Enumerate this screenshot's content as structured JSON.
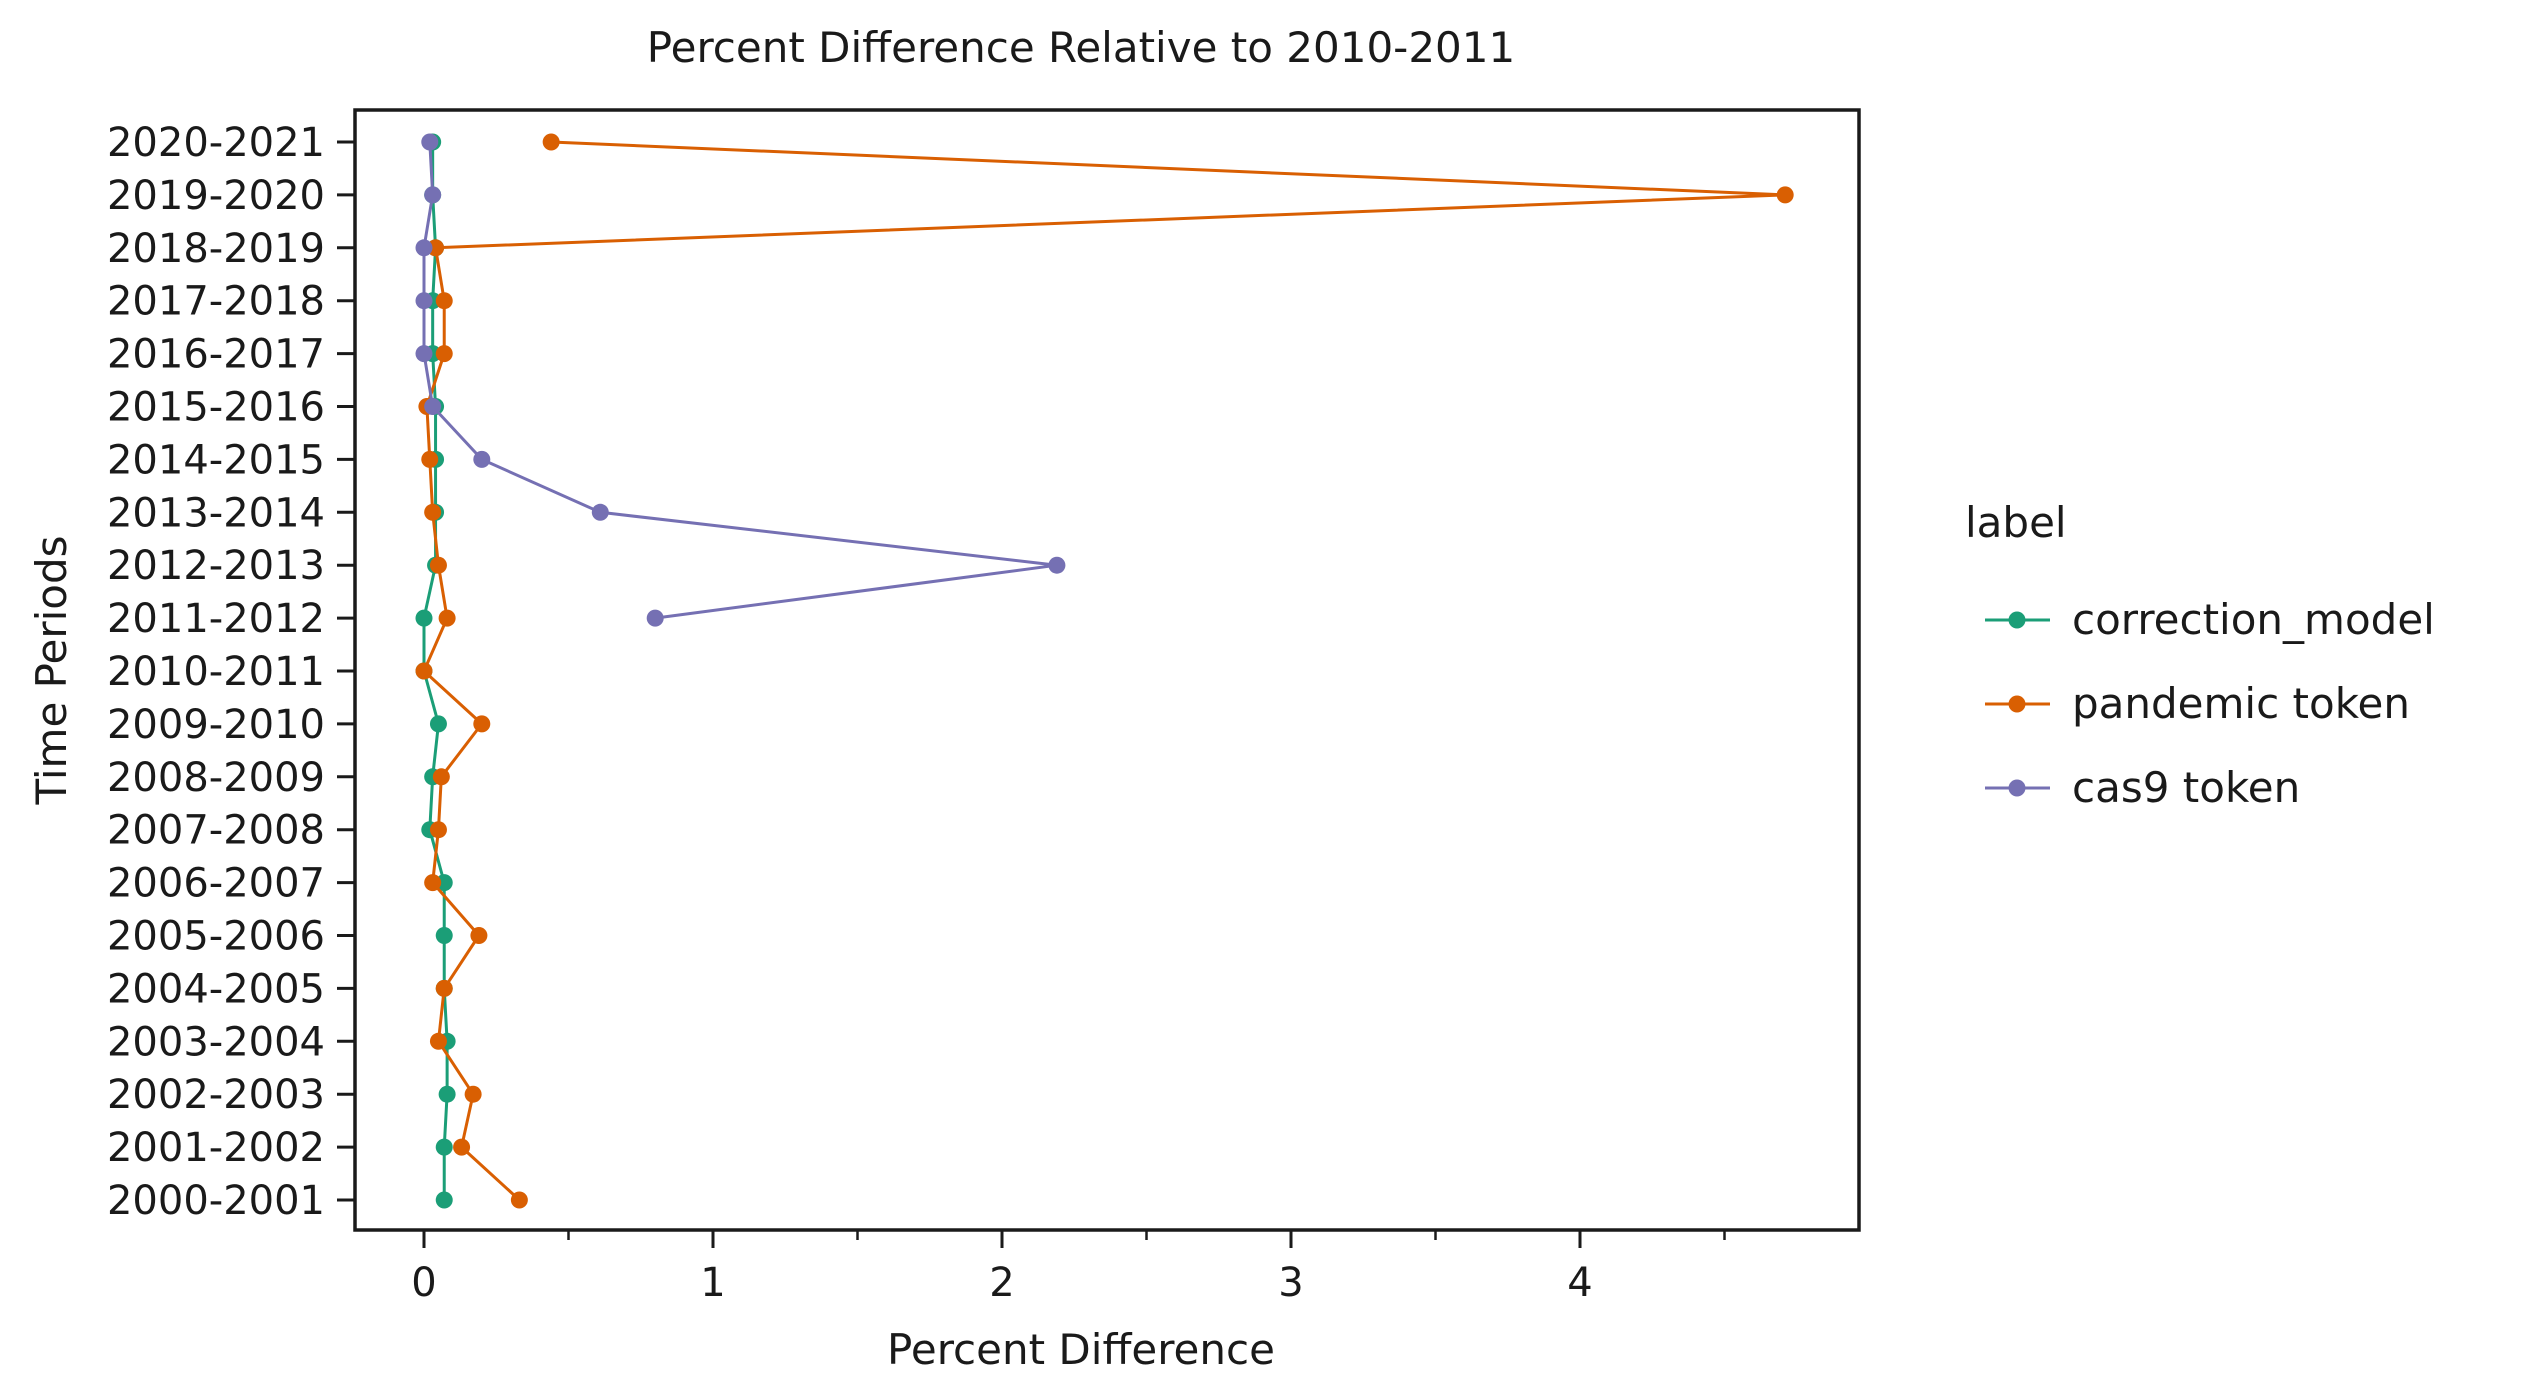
{
  "chart_data": {
    "type": "line",
    "title": "Percent Difference Relative to 2010-2011",
    "xlabel": "Percent Difference",
    "ylabel": "Time Periods",
    "xlim": [
      -0.24,
      4.97
    ],
    "x_ticks": [
      0,
      1,
      2,
      3,
      4
    ],
    "x_minor_ticks": [
      0.5,
      1.5,
      2.5,
      3.5,
      4.5
    ],
    "categories": [
      "2000-2001",
      "2001-2002",
      "2002-2003",
      "2003-2004",
      "2004-2005",
      "2005-2006",
      "2006-2007",
      "2007-2008",
      "2008-2009",
      "2009-2010",
      "2010-2011",
      "2011-2012",
      "2012-2013",
      "2013-2014",
      "2014-2015",
      "2015-2016",
      "2016-2017",
      "2017-2018",
      "2018-2019",
      "2019-2020",
      "2020-2021"
    ],
    "legend": {
      "title": "label",
      "placement": "right"
    },
    "grid": false,
    "series": [
      {
        "name": "correction_model",
        "color": "#1b9e77",
        "values": [
          0.07,
          0.07,
          0.08,
          0.08,
          0.07,
          0.07,
          0.07,
          0.02,
          0.03,
          0.05,
          0.0,
          0.0,
          0.04,
          0.04,
          0.04,
          0.04,
          0.03,
          0.03,
          0.04,
          0.03,
          0.03
        ]
      },
      {
        "name": "pandemic token",
        "color": "#d95f02",
        "values": [
          0.33,
          0.13,
          0.17,
          0.05,
          0.07,
          0.19,
          0.03,
          0.05,
          0.06,
          0.2,
          0.0,
          0.08,
          0.05,
          0.03,
          0.02,
          0.01,
          0.07,
          0.07,
          0.04,
          4.71,
          0.44
        ]
      },
      {
        "name": "cas9 token",
        "color": "#7570b3",
        "values": [
          null,
          null,
          null,
          null,
          null,
          null,
          null,
          null,
          null,
          null,
          null,
          0.8,
          2.19,
          0.61,
          0.2,
          0.03,
          0.0,
          0.0,
          0.0,
          0.03,
          0.02
        ]
      }
    ]
  }
}
